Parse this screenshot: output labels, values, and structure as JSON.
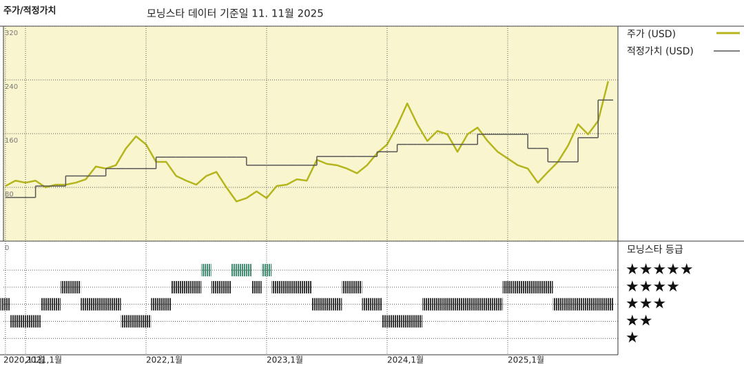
{
  "header": {
    "title": "주가/적정가치",
    "subtitle": "모닝스타 데이터 기준일 11. 11월 2025"
  },
  "chart_data": [
    {
      "type": "line",
      "x": [
        "2020-11",
        "2020-12",
        "2021-01",
        "2021-02",
        "2021-03",
        "2021-04",
        "2021-05",
        "2021-06",
        "2021-07",
        "2021-08",
        "2021-09",
        "2021-10",
        "2021-11",
        "2021-12",
        "2022-01",
        "2022-02",
        "2022-03",
        "2022-04",
        "2022-05",
        "2022-06",
        "2022-07",
        "2022-08",
        "2022-09",
        "2022-10",
        "2022-11",
        "2022-12",
        "2023-01",
        "2023-02",
        "2023-03",
        "2023-04",
        "2023-05",
        "2023-06",
        "2023-07",
        "2023-08",
        "2023-09",
        "2023-10",
        "2023-11",
        "2023-12",
        "2024-01",
        "2024-02",
        "2024-03",
        "2024-04",
        "2024-05",
        "2024-06",
        "2024-07",
        "2024-08",
        "2024-09",
        "2024-10",
        "2024-11",
        "2024-12",
        "2025-01",
        "2025-02",
        "2025-03",
        "2025-04",
        "2025-05",
        "2025-06",
        "2025-07",
        "2025-08",
        "2025-09",
        "2025-10",
        "2025-11"
      ],
      "series": [
        {
          "name": "주가 (USD)",
          "color": "#b4b51c",
          "values": [
            82,
            90,
            87,
            90,
            80,
            84,
            84,
            87,
            92,
            111,
            108,
            113,
            138,
            156,
            144,
            118,
            118,
            97,
            90,
            84,
            97,
            103,
            80,
            59,
            64,
            74,
            64,
            82,
            84,
            92,
            90,
            121,
            115,
            113,
            108,
            101,
            113,
            131,
            144,
            172,
            205,
            174,
            149,
            164,
            159,
            133,
            159,
            169,
            149,
            133,
            123,
            113,
            108,
            87,
            103,
            118,
            142,
            174,
            159,
            179,
            238
          ]
        },
        {
          "name": "적정가치 (USD)",
          "color": "#555555",
          "step": true,
          "values": [
            65,
            65,
            65,
            82,
            82,
            82,
            97,
            97,
            97,
            97,
            108,
            108,
            108,
            108,
            108,
            125,
            125,
            125,
            125,
            125,
            125,
            125,
            125,
            125,
            113,
            113,
            113,
            113,
            113,
            113,
            113,
            126,
            126,
            126,
            126,
            126,
            126,
            133,
            133,
            144,
            144,
            144,
            144,
            144,
            144,
            144,
            144,
            159,
            159,
            159,
            159,
            159,
            138,
            138,
            118,
            118,
            118,
            154,
            154,
            210,
            210
          ]
        }
      ],
      "ylim": [
        0,
        320
      ],
      "yticks": [
        0,
        80,
        160,
        240,
        320
      ],
      "grid": true,
      "background": "#f9f5cf"
    },
    {
      "type": "rating",
      "title": "모닝스타 등급",
      "x": [
        "2020-11",
        "2020-12",
        "2021-01",
        "2021-02",
        "2021-03",
        "2021-04",
        "2021-05",
        "2021-06",
        "2021-07",
        "2021-08",
        "2021-09",
        "2021-10",
        "2021-11",
        "2021-12",
        "2022-01",
        "2022-02",
        "2022-03",
        "2022-04",
        "2022-05",
        "2022-06",
        "2022-07",
        "2022-08",
        "2022-09",
        "2022-10",
        "2022-11",
        "2022-12",
        "2023-01",
        "2023-02",
        "2023-03",
        "2023-04",
        "2023-05",
        "2023-06",
        "2023-07",
        "2023-08",
        "2023-09",
        "2023-10",
        "2023-11",
        "2023-12",
        "2024-01",
        "2024-02",
        "2024-03",
        "2024-04",
        "2024-05",
        "2024-06",
        "2024-07",
        "2024-08",
        "2024-09",
        "2024-10",
        "2024-11",
        "2024-12",
        "2025-01",
        "2025-02",
        "2025-03",
        "2025-04",
        "2025-05",
        "2025-06",
        "2025-07",
        "2025-08",
        "2025-09",
        "2025-10",
        "2025-11"
      ],
      "values": [
        3,
        2,
        2,
        2,
        3,
        3,
        4,
        4,
        3,
        3,
        3,
        3,
        2,
        2,
        2,
        3,
        3,
        4,
        4,
        4,
        5,
        4,
        4,
        5,
        5,
        4,
        5,
        4,
        4,
        4,
        4,
        3,
        3,
        3,
        4,
        4,
        3,
        3,
        2,
        2,
        2,
        2,
        3,
        3,
        3,
        3,
        3,
        3,
        3,
        3,
        4,
        4,
        4,
        4,
        4,
        3,
        3,
        3,
        3,
        3,
        3
      ],
      "color": "#333333",
      "top_color": "#3f8f70",
      "ylim": [
        0,
        6.7
      ],
      "yticks": [
        {
          "value": 5,
          "label": "★★★★★"
        },
        {
          "value": 4,
          "label": "★★★★"
        },
        {
          "value": 3,
          "label": "★★★"
        },
        {
          "value": 2,
          "label": "★★"
        },
        {
          "value": 1,
          "label": "★"
        }
      ],
      "xticks": [
        {
          "value": "2020-11",
          "label": "2020,11월"
        },
        {
          "value": "2021-01",
          "label": "2021,1월"
        },
        {
          "value": "2022-01",
          "label": "2022,1월"
        },
        {
          "value": "2023-01",
          "label": "2023,1월"
        },
        {
          "value": "2024-01",
          "label": "2024,1월"
        },
        {
          "value": "2025-01",
          "label": "2025,1월"
        }
      ],
      "grid": true
    }
  ]
}
